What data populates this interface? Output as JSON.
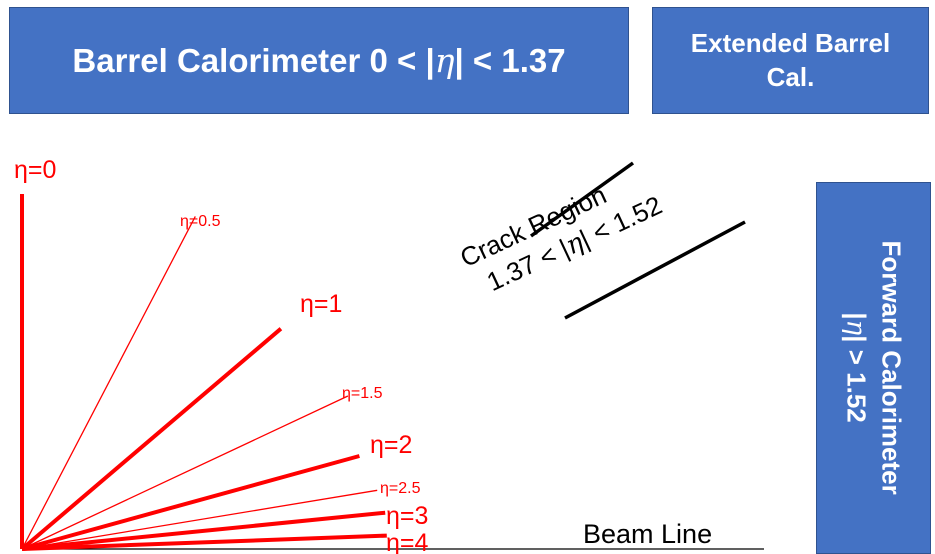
{
  "barrel": {
    "text_before": "Barrel Calorimeter 0 < |",
    "eta": "η",
    "text_after": "| < 1.37"
  },
  "extended": {
    "line1": "Extended Barrel",
    "line2": "Cal."
  },
  "forward": {
    "line1": "Forward Calorimeter",
    "line2_before": "|",
    "eta": "η",
    "line2_after": "| > 1.52"
  },
  "crack": {
    "line1": "Crack Region",
    "line2_before": "1.37 < |",
    "eta": "η",
    "line2_after": "| < 1.52"
  },
  "beam_line_label": "Beam Line",
  "eta_lines": [
    {
      "eta": 0,
      "label": "η=0",
      "weight": "thick"
    },
    {
      "eta": 0.5,
      "label": "η=0.5",
      "weight": "thin"
    },
    {
      "eta": 1,
      "label": "η=1",
      "weight": "thick"
    },
    {
      "eta": 1.5,
      "label": "η=1.5",
      "weight": "thin"
    },
    {
      "eta": 2,
      "label": "η=2",
      "weight": "thick"
    },
    {
      "eta": 2.5,
      "label": "η=2.5",
      "weight": "thin"
    },
    {
      "eta": 3,
      "label": "η=3",
      "weight": "thick"
    },
    {
      "eta": 4,
      "label": "η=4",
      "weight": "thick"
    }
  ],
  "colors": {
    "box_fill": "#4472c4",
    "eta_line": "#ff0000",
    "text": "#000000"
  }
}
